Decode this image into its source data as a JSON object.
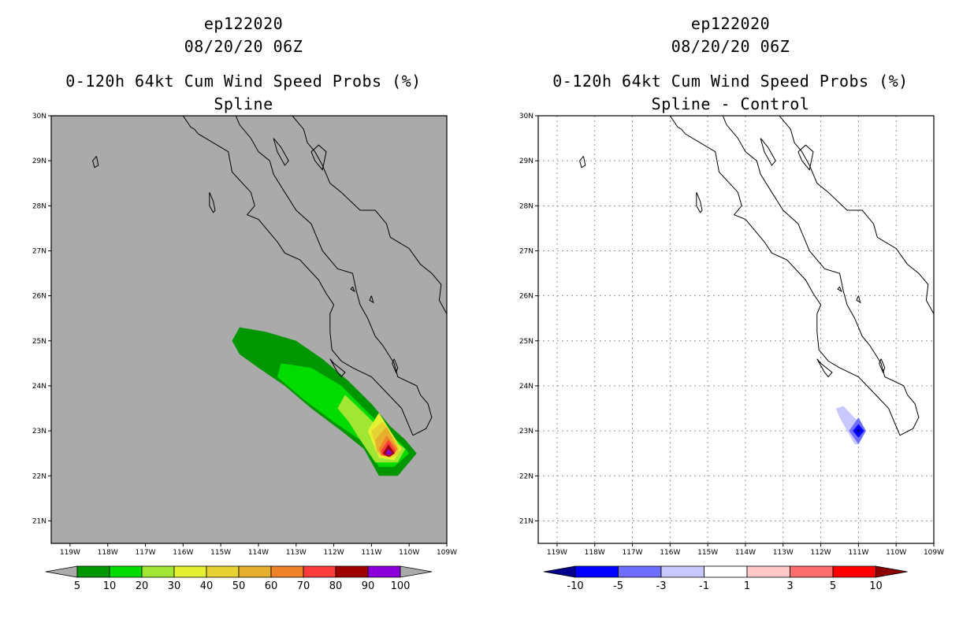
{
  "chart_data": [
    {
      "type": "contour_map",
      "storm_id": "ep122020",
      "datetime": "08/20/20 06Z",
      "title": "0-120h 64kt Cum Wind Speed Probs (%)",
      "subtitle": "Spline",
      "lon_range": [
        -119.5,
        -109
      ],
      "lat_range": [
        20.5,
        30
      ],
      "lon_ticks": [
        "119W",
        "118W",
        "117W",
        "116W",
        "115W",
        "114W",
        "113W",
        "112W",
        "111W",
        "110W",
        "109W"
      ],
      "lat_ticks": [
        "21N",
        "22N",
        "23N",
        "24N",
        "25N",
        "26N",
        "27N",
        "28N",
        "29N",
        "30N"
      ],
      "grid": false,
      "background": "#aaaaaa",
      "colorbar": {
        "labels": [
          "5",
          "10",
          "20",
          "30",
          "40",
          "50",
          "60",
          "70",
          "80",
          "90",
          "100"
        ],
        "colors": [
          "#009600",
          "#00dc00",
          "#a0e632",
          "#e6f032",
          "#e6d232",
          "#e6af2d",
          "#f08228",
          "#fa3c3c",
          "#a00000",
          "#8c00dc"
        ],
        "extend_color": "#aaaaaa"
      },
      "contours": [
        {
          "level": 5,
          "color": "#009600",
          "polygon": [
            [
              -114.7,
              25.0
            ],
            [
              -114.5,
              25.3
            ],
            [
              -113.8,
              25.2
            ],
            [
              -113.0,
              25.0
            ],
            [
              -112.3,
              24.6
            ],
            [
              -111.6,
              24.1
            ],
            [
              -111.0,
              23.6
            ],
            [
              -110.5,
              23.1
            ],
            [
              -110.1,
              22.8
            ],
            [
              -109.8,
              22.5
            ],
            [
              -110.3,
              22.0
            ],
            [
              -110.8,
              22.0
            ],
            [
              -111.2,
              22.6
            ],
            [
              -111.8,
              23.0
            ],
            [
              -112.6,
              23.5
            ],
            [
              -113.3,
              24.0
            ],
            [
              -114.0,
              24.4
            ],
            [
              -114.5,
              24.7
            ]
          ]
        },
        {
          "level": 10,
          "color": "#00dc00",
          "polygon": [
            [
              -113.5,
              24.2
            ],
            [
              -113.4,
              24.5
            ],
            [
              -112.6,
              24.4
            ],
            [
              -111.8,
              24.0
            ],
            [
              -111.2,
              23.5
            ],
            [
              -110.6,
              23.0
            ],
            [
              -110.2,
              22.7
            ],
            [
              -110.0,
              22.5
            ],
            [
              -110.4,
              22.2
            ],
            [
              -110.8,
              22.2
            ],
            [
              -111.3,
              22.8
            ],
            [
              -112.0,
              23.2
            ],
            [
              -112.8,
              23.7
            ]
          ]
        },
        {
          "level": 20,
          "color": "#a0e632",
          "polygon": [
            [
              -111.9,
              23.5
            ],
            [
              -111.7,
              23.8
            ],
            [
              -111.2,
              23.4
            ],
            [
              -110.6,
              22.9
            ],
            [
              -110.1,
              22.6
            ],
            [
              -110.3,
              22.3
            ],
            [
              -110.9,
              22.3
            ],
            [
              -111.3,
              22.8
            ],
            [
              -111.6,
              23.2
            ]
          ]
        },
        {
          "level": 30,
          "color": "#e6f032",
          "polygon": [
            [
              -111.1,
              23.0
            ],
            [
              -110.8,
              23.4
            ],
            [
              -110.5,
              23.0
            ],
            [
              -110.2,
              22.6
            ],
            [
              -110.4,
              22.35
            ],
            [
              -110.8,
              22.4
            ]
          ]
        },
        {
          "level": 40,
          "color": "#e6d232",
          "polygon": [
            [
              -111.0,
              23.0
            ],
            [
              -110.7,
              23.2
            ],
            [
              -110.3,
              22.7
            ],
            [
              -110.25,
              22.5
            ],
            [
              -110.5,
              22.4
            ],
            [
              -110.85,
              22.5
            ]
          ]
        },
        {
          "level": 50,
          "color": "#e6af2d",
          "polygon": [
            [
              -110.9,
              22.8
            ],
            [
              -110.6,
              23.1
            ],
            [
              -110.3,
              22.6
            ],
            [
              -110.5,
              22.45
            ],
            [
              -110.85,
              22.55
            ]
          ]
        },
        {
          "level": 60,
          "color": "#f08228",
          "polygon": [
            [
              -110.8,
              22.6
            ],
            [
              -110.6,
              22.9
            ],
            [
              -110.3,
              22.6
            ],
            [
              -110.45,
              22.45
            ],
            [
              -110.75,
              22.45
            ]
          ]
        },
        {
          "level": 70,
          "color": "#fa3c3c",
          "polygon": [
            [
              -110.75,
              22.55
            ],
            [
              -110.55,
              22.8
            ],
            [
              -110.35,
              22.55
            ],
            [
              -110.5,
              22.42
            ],
            [
              -110.7,
              22.45
            ]
          ]
        },
        {
          "level": 80,
          "color": "#a00000",
          "polygon": [
            [
              -110.7,
              22.5
            ],
            [
              -110.55,
              22.7
            ],
            [
              -110.38,
              22.5
            ],
            [
              -110.55,
              22.42
            ]
          ]
        },
        {
          "level": 90,
          "color": "#8c00dc",
          "polygon": [
            [
              -110.62,
              22.5
            ],
            [
              -110.55,
              22.6
            ],
            [
              -110.45,
              22.5
            ],
            [
              -110.55,
              22.46
            ]
          ]
        }
      ]
    },
    {
      "type": "contour_map",
      "storm_id": "ep122020",
      "datetime": "08/20/20 06Z",
      "title": "0-120h 64kt Cum Wind Speed Probs (%)",
      "subtitle": "Spline - Control",
      "lon_range": [
        -119.5,
        -109
      ],
      "lat_range": [
        20.5,
        30
      ],
      "lon_ticks": [
        "119W",
        "118W",
        "117W",
        "116W",
        "115W",
        "114W",
        "113W",
        "112W",
        "111W",
        "110W",
        "109W"
      ],
      "lat_ticks": [
        "21N",
        "22N",
        "23N",
        "24N",
        "25N",
        "26N",
        "27N",
        "28N",
        "29N",
        "30N"
      ],
      "grid": true,
      "background": "#ffffff",
      "colorbar": {
        "labels": [
          "-10",
          "-5",
          "-3",
          "-1",
          "1",
          "3",
          "5",
          "10"
        ],
        "colors": [
          "#0000ff",
          "#6e6eff",
          "#c8c8ff",
          "#ffffff",
          "#ffc8c8",
          "#ff6e6e",
          "#ff0000"
        ],
        "left_extend_color": "#00008c",
        "right_extend_color": "#8c0000"
      },
      "contours": [
        {
          "level": -1,
          "color": "#c8c8ff",
          "polygon": [
            [
              -111.6,
              23.5
            ],
            [
              -111.4,
              23.55
            ],
            [
              -111.0,
              23.2
            ],
            [
              -110.9,
              23.0
            ],
            [
              -111.0,
              22.7
            ],
            [
              -111.1,
              22.7
            ],
            [
              -111.3,
              23.0
            ],
            [
              -111.5,
              23.3
            ]
          ]
        },
        {
          "level": -3,
          "color": "#6e6eff",
          "polygon": [
            [
              -111.25,
              23.0
            ],
            [
              -111.0,
              23.3
            ],
            [
              -110.8,
              23.0
            ],
            [
              -111.0,
              22.7
            ]
          ]
        },
        {
          "level": -5,
          "color": "#0000ff",
          "polygon": [
            [
              -111.15,
              23.0
            ],
            [
              -111.0,
              23.15
            ],
            [
              -110.85,
              23.0
            ],
            [
              -111.0,
              22.85
            ]
          ]
        },
        {
          "level": -10,
          "color": "#00008c",
          "polygon": [
            [
              -111.05,
              23.0
            ],
            [
              -111.0,
              23.05
            ],
            [
              -110.95,
              23.0
            ],
            [
              -111.0,
              22.95
            ]
          ]
        }
      ]
    }
  ],
  "coastline": [
    {
      "name": "baja-west-coast",
      "points": [
        [
          -116.0,
          30.0
        ],
        [
          -115.8,
          29.75
        ],
        [
          -115.7,
          29.7
        ],
        [
          -115.6,
          29.6
        ],
        [
          -115.2,
          29.4
        ],
        [
          -114.8,
          29.2
        ],
        [
          -114.7,
          28.75
        ],
        [
          -114.2,
          28.3
        ],
        [
          -114.1,
          28.0
        ],
        [
          -114.3,
          27.8
        ],
        [
          -114.0,
          27.7
        ],
        [
          -113.5,
          27.2
        ],
        [
          -113.3,
          26.95
        ],
        [
          -112.9,
          26.8
        ],
        [
          -112.4,
          26.35
        ],
        [
          -112.2,
          26.05
        ],
        [
          -112.0,
          25.8
        ],
        [
          -112.1,
          25.6
        ],
        [
          -112.1,
          25.2
        ],
        [
          -112.05,
          24.8
        ],
        [
          -111.8,
          24.55
        ],
        [
          -111.5,
          24.4
        ],
        [
          -111.0,
          24.2
        ],
        [
          -110.6,
          23.85
        ],
        [
          -110.2,
          23.5
        ],
        [
          -110.0,
          23.1
        ],
        [
          -109.9,
          22.9
        ]
      ]
    },
    {
      "name": "baja-east-coast",
      "points": [
        [
          -109.9,
          22.9
        ],
        [
          -109.55,
          23.05
        ],
        [
          -109.4,
          23.3
        ],
        [
          -109.5,
          23.6
        ],
        [
          -109.7,
          23.8
        ],
        [
          -109.8,
          24.0
        ],
        [
          -110.3,
          24.2
        ],
        [
          -110.4,
          24.5
        ],
        [
          -110.7,
          24.9
        ],
        [
          -110.9,
          25.1
        ],
        [
          -111.1,
          25.5
        ],
        [
          -111.3,
          25.8
        ],
        [
          -111.4,
          26.1
        ],
        [
          -111.5,
          26.5
        ],
        [
          -111.9,
          26.6
        ],
        [
          -112.3,
          27.0
        ],
        [
          -112.6,
          27.6
        ],
        [
          -113.0,
          27.9
        ],
        [
          -113.3,
          28.3
        ],
        [
          -113.6,
          28.7
        ],
        [
          -113.7,
          29.0
        ],
        [
          -114.0,
          29.2
        ],
        [
          -114.2,
          29.5
        ],
        [
          -114.5,
          29.8
        ],
        [
          -114.6,
          30.0
        ]
      ]
    },
    {
      "name": "mainland-coast",
      "points": [
        [
          -113.1,
          30.0
        ],
        [
          -112.9,
          29.8
        ],
        [
          -112.8,
          29.7
        ],
        [
          -112.7,
          29.4
        ],
        [
          -112.5,
          29.2
        ],
        [
          -112.3,
          28.9
        ],
        [
          -112.1,
          28.5
        ],
        [
          -111.8,
          28.3
        ],
        [
          -111.3,
          27.9
        ],
        [
          -110.9,
          27.9
        ],
        [
          -110.6,
          27.6
        ],
        [
          -110.5,
          27.3
        ],
        [
          -110.0,
          27.05
        ],
        [
          -109.7,
          26.7
        ],
        [
          -109.4,
          26.5
        ],
        [
          -109.15,
          26.25
        ],
        [
          -109.2,
          25.9
        ],
        [
          -109.0,
          25.6
        ]
      ]
    },
    {
      "name": "tiburon-island",
      "points": [
        [
          -112.6,
          29.2
        ],
        [
          -112.4,
          29.35
        ],
        [
          -112.2,
          29.2
        ],
        [
          -112.3,
          28.8
        ],
        [
          -112.5,
          29.0
        ],
        [
          -112.6,
          29.2
        ]
      ]
    },
    {
      "name": "angel-guarda-island",
      "points": [
        [
          -113.6,
          29.5
        ],
        [
          -113.4,
          29.3
        ],
        [
          -113.2,
          29.0
        ],
        [
          -113.3,
          28.9
        ],
        [
          -113.5,
          29.2
        ],
        [
          -113.6,
          29.5
        ]
      ]
    },
    {
      "name": "cedros-island",
      "points": [
        [
          -115.3,
          28.3
        ],
        [
          -115.2,
          28.1
        ],
        [
          -115.15,
          27.9
        ],
        [
          -115.2,
          27.85
        ],
        [
          -115.3,
          28.0
        ],
        [
          -115.3,
          28.3
        ]
      ]
    },
    {
      "name": "guadalupe-island",
      "points": [
        [
          -118.3,
          29.1
        ],
        [
          -118.25,
          28.9
        ],
        [
          -118.35,
          28.85
        ],
        [
          -118.4,
          29.0
        ],
        [
          -118.3,
          29.1
        ]
      ]
    },
    {
      "name": "margarita-island",
      "points": [
        [
          -112.1,
          24.6
        ],
        [
          -111.9,
          24.3
        ],
        [
          -111.8,
          24.2
        ],
        [
          -111.7,
          24.3
        ],
        [
          -112.0,
          24.5
        ],
        [
          -112.1,
          24.6
        ]
      ]
    },
    {
      "name": "espiritu-santo-island",
      "points": [
        [
          -110.4,
          24.6
        ],
        [
          -110.3,
          24.4
        ],
        [
          -110.35,
          24.3
        ],
        [
          -110.45,
          24.5
        ],
        [
          -110.4,
          24.6
        ]
      ]
    },
    {
      "name": "tiny-island-a",
      "points": [
        [
          -111.0,
          26.0
        ],
        [
          -110.95,
          25.85
        ],
        [
          -111.05,
          25.9
        ],
        [
          -111.0,
          26.0
        ]
      ]
    },
    {
      "name": "tiny-island-b",
      "points": [
        [
          -111.5,
          26.2
        ],
        [
          -111.45,
          26.1
        ],
        [
          -111.55,
          26.15
        ],
        [
          -111.5,
          26.2
        ]
      ]
    }
  ]
}
